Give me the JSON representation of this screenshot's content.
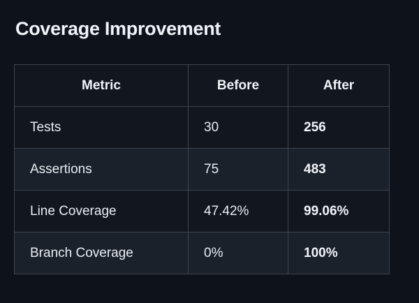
{
  "title": "Coverage Improvement",
  "table": {
    "headers": [
      "Metric",
      "Before",
      "After"
    ],
    "rows": [
      {
        "metric": "Tests",
        "before": "30",
        "after": "256"
      },
      {
        "metric": "Assertions",
        "before": "75",
        "after": "483"
      },
      {
        "metric": "Line Coverage",
        "before": "47.42%",
        "after": "99.06%"
      },
      {
        "metric": "Branch Coverage",
        "before": "0%",
        "after": "100%"
      }
    ]
  },
  "chart_data": {
    "type": "table",
    "title": "Coverage Improvement",
    "columns": [
      "Metric",
      "Before",
      "After"
    ],
    "rows": [
      [
        "Tests",
        "30",
        "256"
      ],
      [
        "Assertions",
        "75",
        "483"
      ],
      [
        "Line Coverage",
        "47.42%",
        "99.06%"
      ],
      [
        "Branch Coverage",
        "0%",
        "100%"
      ]
    ],
    "emphasis": "After column values are bold",
    "layout_hints": {
      "header_alignment": "center",
      "body_alignment": "left",
      "alternating_rows": true
    }
  },
  "colors": {
    "page_background": "#0e121b",
    "row_default": "#12161f",
    "row_muted": "#1b212b",
    "border": "#3d444d",
    "heading_text": "#f0f4f9",
    "body_text": "#e9edf3"
  }
}
